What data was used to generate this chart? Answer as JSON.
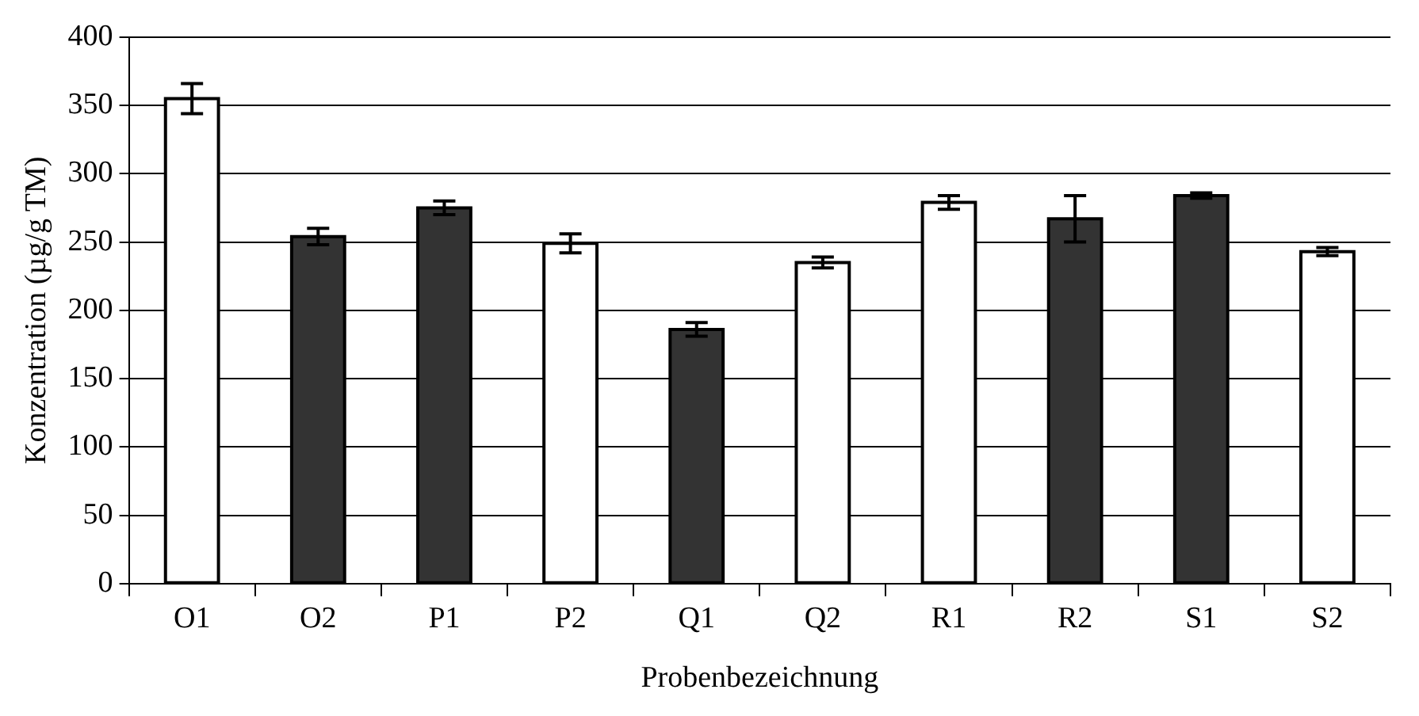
{
  "chart_data": {
    "type": "bar",
    "xlabel": "Probenbezeichnung",
    "ylabel": "Konzentration (µg/g TM)",
    "categories": [
      "O1",
      "O2",
      "P1",
      "P2",
      "Q1",
      "Q2",
      "R1",
      "R2",
      "S1",
      "S2"
    ],
    "values": [
      355,
      254,
      275,
      249,
      186,
      235,
      279,
      267,
      284,
      243
    ],
    "colors": [
      "#ffffff",
      "#333333",
      "#333333",
      "#ffffff",
      "#333333",
      "#ffffff",
      "#ffffff",
      "#333333",
      "#333333",
      "#ffffff"
    ],
    "errors": [
      11,
      6,
      5,
      7,
      5,
      4,
      5,
      17,
      2,
      3
    ],
    "ylim": [
      0,
      400
    ],
    "yticks": [
      0,
      50,
      100,
      150,
      200,
      250,
      300,
      350,
      400
    ],
    "grid": "y",
    "legend": false
  }
}
